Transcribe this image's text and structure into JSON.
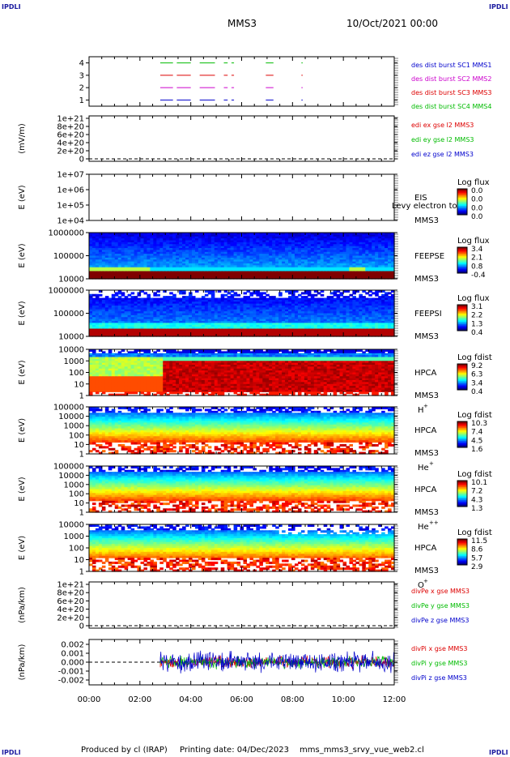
{
  "header": {
    "logo_left": "IPDLI",
    "logo_right": "IPDLI",
    "spacecraft": "MMS3",
    "date": "10/Oct/2021 00:00"
  },
  "footer": {
    "producer": "Produced by cl (IRAP)",
    "printing": "Printing date: 04/Dec/2023",
    "filename": "mms_mms3_srvy_vue_web2.cl"
  },
  "time_axis": {
    "ticks": [
      "00:00",
      "02:00",
      "04:00",
      "06:00",
      "08:00",
      "10:00",
      "12:00"
    ],
    "range_hours": [
      0,
      12
    ]
  },
  "chart_data": [
    {
      "type": "line",
      "id": "burst",
      "ylabel": "",
      "yticks": [
        "1",
        "2",
        "3",
        "4"
      ],
      "ylim": [
        0.5,
        4.5
      ],
      "legend": [
        {
          "label": "des dist burst SC1 MMS1",
          "color": "#0000cc"
        },
        {
          "label": "des dist burst SC2 MMS2",
          "color": "#cc00cc"
        },
        {
          "label": "des dist burst SC3 MMS3",
          "color": "#dd0000"
        },
        {
          "label": "des dist burst SC4 MMS4",
          "color": "#00bb00"
        }
      ],
      "series_levels": [
        1,
        2,
        3,
        4
      ],
      "segments_hours": [
        [
          2.8,
          3.3
        ],
        [
          3.45,
          4.0
        ],
        [
          4.35,
          4.95
        ],
        [
          5.3,
          5.45
        ],
        [
          5.6,
          5.7
        ],
        [
          6.95,
          7.25
        ],
        [
          8.35,
          8.4
        ]
      ]
    },
    {
      "type": "line",
      "id": "edi",
      "ylabel": "(mV/m)",
      "yticks": [
        "0",
        "2e+20",
        "4e+20",
        "6e+20",
        "8e+20",
        "1e+21"
      ],
      "ylim": [
        0,
        1e+21
      ],
      "legend": [
        {
          "label": "edi ex gse l2 MMS3",
          "color": "#dd0000"
        },
        {
          "label": "edi ey gse l2 MMS3",
          "color": "#00bb00"
        },
        {
          "label": "edi ez gse l2 MMS3",
          "color": "#0000cc"
        }
      ]
    },
    {
      "type": "heatmap",
      "id": "eis",
      "ylabel": "E (eV)",
      "yticks": [
        "1e+04",
        "1e+05",
        "1e+06",
        "1e+07"
      ],
      "ylim": [
        10000.0,
        10000000.0
      ],
      "instrument": "EIS",
      "sc": "MMS3",
      "overlay": "Levy electron to",
      "cb_title": "Log flux",
      "cb_values": [
        "0.0",
        "0.0",
        "0.0",
        "0.0"
      ],
      "empty": true
    },
    {
      "type": "heatmap",
      "id": "feepse",
      "ylabel": "E (eV)",
      "yticks": [
        "10000",
        "100000",
        "1000000"
      ],
      "ylim": [
        10000,
        1000000
      ],
      "instrument": "FEEPSE",
      "sc": "MMS3",
      "cb_title": "Log flux",
      "cb_values": [
        "3.4",
        "2.1",
        "0.8",
        "-0.4"
      ]
    },
    {
      "type": "heatmap",
      "id": "feepsi",
      "ylabel": "E (eV)",
      "yticks": [
        "10000",
        "100000",
        "1000000"
      ],
      "ylim": [
        10000,
        1000000
      ],
      "instrument": "FEEPSI",
      "sc": "MMS3",
      "cb_title": "Log flux",
      "cb_values": [
        "3.1",
        "2.2",
        "1.3",
        "0.4"
      ]
    },
    {
      "type": "heatmap",
      "id": "hpca_h",
      "ylabel": "E (eV)",
      "yticks": [
        "1",
        "10",
        "100",
        "1000",
        "10000"
      ],
      "ylim": [
        1,
        30000
      ],
      "instrument": "HPCA",
      "sc": "MMS3",
      "species": "H",
      "charge": "+",
      "cb_title": "Log fdist",
      "cb_values": [
        "9.2",
        "6.3",
        "3.4",
        "0.4"
      ]
    },
    {
      "type": "heatmap",
      "id": "hpca_he",
      "ylabel": "E (eV)",
      "yticks": [
        "1",
        "10",
        "100",
        "1000",
        "10000",
        "100000"
      ],
      "ylim": [
        1,
        100000
      ],
      "instrument": "HPCA",
      "sc": "MMS3",
      "species": "He",
      "charge": "+",
      "cb_title": "Log fdist",
      "cb_values": [
        "10.3",
        "7.4",
        "4.5",
        "1.6"
      ]
    },
    {
      "type": "heatmap",
      "id": "hpca_hepp",
      "ylabel": "E (eV)",
      "yticks": [
        "1",
        "10",
        "100",
        "1000",
        "10000",
        "100000"
      ],
      "ylim": [
        1,
        100000
      ],
      "instrument": "HPCA",
      "sc": "MMS3",
      "species": "He",
      "charge": "++",
      "cb_title": "Log fdist",
      "cb_values": [
        "10.1",
        "7.2",
        "4.3",
        "1.3"
      ]
    },
    {
      "type": "heatmap",
      "id": "hpca_o",
      "ylabel": "E (eV)",
      "yticks": [
        "1",
        "10",
        "100",
        "1000",
        "10000"
      ],
      "ylim": [
        1,
        30000
      ],
      "instrument": "HPCA",
      "sc": "MMS3",
      "species": "O",
      "charge": "+",
      "cb_title": "Log fdist",
      "cb_values": [
        "11.5",
        "8.6",
        "5.7",
        "2.9"
      ]
    },
    {
      "type": "line",
      "id": "divpe",
      "ylabel": "(nPa/km)",
      "yticks": [
        "0",
        "2e+20",
        "4e+20",
        "6e+20",
        "8e+20",
        "1e+21"
      ],
      "ylim": [
        0,
        1e+21
      ],
      "legend": [
        {
          "label": "divPe x gse MMS3",
          "color": "#dd0000"
        },
        {
          "label": "divPe y gse MMS3",
          "color": "#00bb00"
        },
        {
          "label": "divPe z gse MMS3",
          "color": "#0000cc"
        }
      ]
    },
    {
      "type": "line",
      "id": "divpi",
      "ylabel": "(nPa/km)",
      "yticks": [
        "-0.002",
        "-0.001",
        "0.000",
        "0.001",
        "0.002"
      ],
      "ylim": [
        -0.0025,
        0.0025
      ],
      "legend": [
        {
          "label": "divPi x gse MMS3",
          "color": "#dd0000"
        },
        {
          "label": "divPi y gse MMS3",
          "color": "#00bb00"
        },
        {
          "label": "divPi z gse MMS3",
          "color": "#0000cc"
        }
      ],
      "data_start_hours": 2.8
    }
  ]
}
